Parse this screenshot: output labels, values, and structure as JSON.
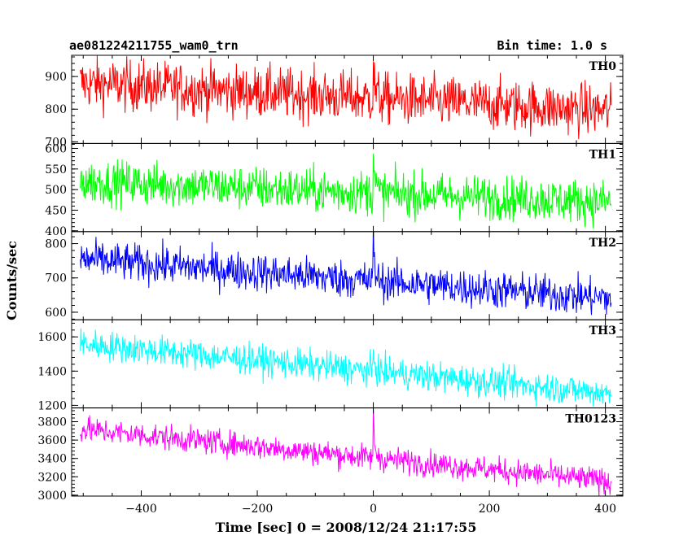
{
  "header": {
    "title": "ae081224211755_wam0_trn",
    "bin_time": "Bin time: 1.0 s"
  },
  "axes": {
    "ylabel": "Counts/sec",
    "xlabel": "Time [sec] 0 = 2008/12/24 21:17:55"
  },
  "chart_data": {
    "type": "line",
    "title": "ae081224211755_wam0_trn",
    "subtitle": "Bin time: 1.0 s",
    "xlabel": "Time [sec] 0 = 2008/12/24 21:17:55",
    "ylabel": "Counts/sec",
    "xlim": [
      -520,
      430
    ],
    "x_range_of_data": [
      -505,
      410
    ],
    "x_ticks": [
      -400,
      -200,
      0,
      200,
      400
    ],
    "bin_time_s": 1.0,
    "panels": [
      {
        "name": "TH0",
        "color": "#ff0000",
        "ylim": [
          695,
          965
        ],
        "y_ticks": [
          700,
          800,
          900
        ],
        "start": 880,
        "end": 795,
        "noise": 40,
        "spike": {
          "x": 0,
          "value": 945
        }
      },
      {
        "name": "TH1",
        "color": "#00ff00",
        "ylim": [
          398,
          612
        ],
        "y_ticks": [
          400,
          450,
          500,
          550,
          600
        ],
        "start": 520,
        "end": 470,
        "noise": 27,
        "spike": {
          "x": 0,
          "value": 605
        }
      },
      {
        "name": "TH2",
        "color": "#0000ff",
        "ylim": [
          578,
          835
        ],
        "y_ticks": [
          600,
          700,
          800
        ],
        "start": 755,
        "end": 640,
        "noise": 28,
        "spike": {
          "x": 0,
          "value": 830
        }
      },
      {
        "name": "TH3",
        "color": "#00ffff",
        "ylim": [
          1185,
          1700
        ],
        "y_ticks": [
          1200,
          1400,
          1600
        ],
        "start": 1560,
        "end": 1270,
        "noise": 45,
        "spike": {
          "x": 0,
          "value": 1530
        }
      },
      {
        "name": "TH0123",
        "color": "#ff00ff",
        "ylim": [
          2990,
          3950
        ],
        "y_ticks": [
          3000,
          3200,
          3400,
          3600,
          3800
        ],
        "start": 3720,
        "end": 3150,
        "noise": 70,
        "spike": {
          "x": 0,
          "value": 3870
        }
      }
    ]
  }
}
